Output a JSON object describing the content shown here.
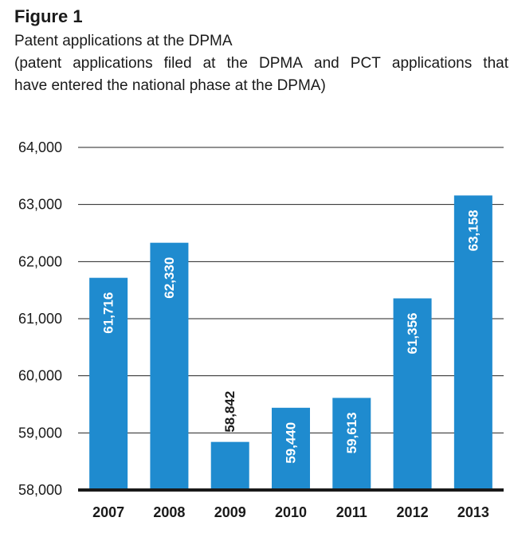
{
  "figure": {
    "label": "Figure 1",
    "title": "Patent applications at the DPMA",
    "subtitle_words_line1": [
      "(patent",
      "applications",
      "filed",
      "at",
      "the",
      "DPMA",
      "and",
      "PCT",
      "applications",
      "that"
    ],
    "subtitle_line2": "have entered the national phase at the DPMA)"
  },
  "chart_data": {
    "type": "bar",
    "categories": [
      "2007",
      "2008",
      "2009",
      "2010",
      "2011",
      "2012",
      "2013"
    ],
    "values": [
      61716,
      62330,
      58842,
      59440,
      59613,
      61356,
      63158
    ],
    "value_labels": [
      "61,716",
      "62,330",
      "58,842",
      "59,440",
      "59,613",
      "61,356",
      "63,158"
    ],
    "ylim": [
      58000,
      64000
    ],
    "yticks": [
      58000,
      59000,
      60000,
      61000,
      62000,
      63000,
      64000
    ],
    "ytick_labels": [
      "58,000",
      "59,000",
      "60,000",
      "61,000",
      "62,000",
      "63,000",
      "64,000"
    ],
    "grid": true,
    "bar_color": "#1f8bcf",
    "label_inside_color": "#ffffff",
    "label_outside_color": "#1a1a1a",
    "baseline_color": "#1a1a1a"
  }
}
